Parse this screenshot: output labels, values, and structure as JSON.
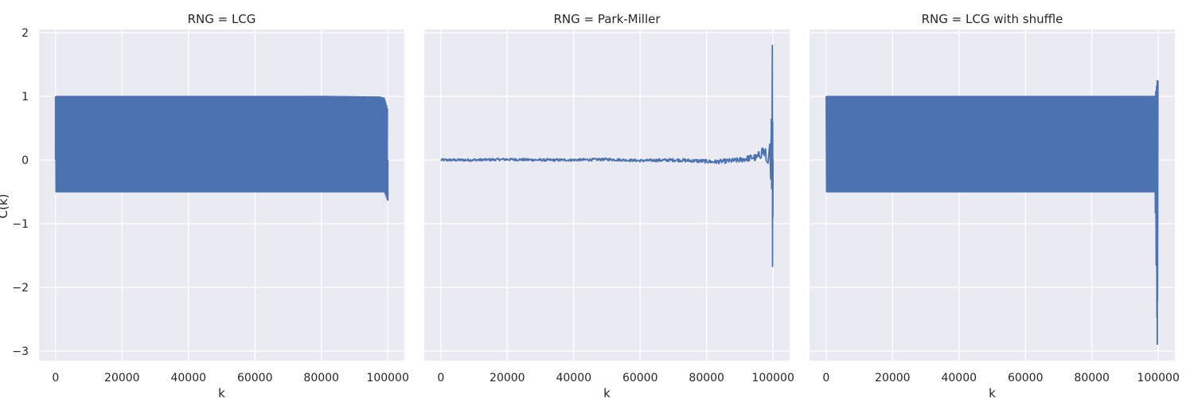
{
  "chart_data": [
    {
      "type": "line",
      "title": "RNG = LCG",
      "xlabel": "k",
      "ylabel": "C(k)",
      "xlim": [
        -5000,
        105000
      ],
      "ylim": [
        -3.15,
        2.05
      ],
      "x_ticks": [
        0,
        20000,
        40000,
        60000,
        80000,
        100000
      ],
      "x_tick_labels": [
        "0",
        "20000",
        "40000",
        "60000",
        "80000",
        "100000"
      ],
      "y_ticks": [
        -3,
        -2,
        -1,
        0,
        1,
        2
      ],
      "y_tick_labels": [
        "−3",
        "−2",
        "−1",
        "0",
        "1",
        "2"
      ],
      "grid": true,
      "line_color": "#4c72b0",
      "background_color": "#eaeaf2",
      "series": [
        {
          "pattern": "oscillating band",
          "band_upper": [
            [
              0,
              1.0
            ],
            [
              20000,
              1.0
            ],
            [
              40000,
              1.0
            ],
            [
              60000,
              1.0
            ],
            [
              80000,
              1.0
            ],
            [
              97500,
              0.99
            ],
            [
              99000,
              0.97
            ],
            [
              100000,
              0.8
            ]
          ],
          "band_lower": [
            [
              0,
              -0.5
            ],
            [
              20000,
              -0.5
            ],
            [
              40000,
              -0.5
            ],
            [
              60000,
              -0.5
            ],
            [
              80000,
              -0.5
            ],
            [
              99000,
              -0.5
            ],
            [
              100000,
              -0.64
            ]
          ],
          "start_value": [
            0,
            0.2
          ]
        }
      ]
    },
    {
      "type": "line",
      "title": "RNG = Park-Miller",
      "xlabel": "k",
      "ylabel": "",
      "xlim": [
        -5000,
        105000
      ],
      "ylim": [
        -3.15,
        2.05
      ],
      "x_ticks": [
        0,
        20000,
        40000,
        60000,
        80000,
        100000
      ],
      "x_tick_labels": [
        "0",
        "20000",
        "40000",
        "60000",
        "80000",
        "100000"
      ],
      "y_ticks": [
        -3,
        -2,
        -1,
        0,
        1,
        2
      ],
      "grid": true,
      "line_color": "#4c72b0",
      "series": [
        {
          "pattern": "noise around zero",
          "x": [
            0,
            10000,
            20000,
            30000,
            40000,
            50000,
            60000,
            70000,
            75000,
            80000,
            82000,
            85000,
            88000,
            90000,
            92000,
            94000,
            95000,
            96000,
            97000,
            98000,
            98500,
            99000,
            99300,
            99500,
            99600,
            99700,
            99800,
            99850,
            99900,
            99950,
            100000
          ],
          "y": [
            0.0,
            0.0,
            0.01,
            0.0,
            0.0,
            0.01,
            -0.01,
            0.0,
            -0.01,
            -0.02,
            -0.03,
            -0.02,
            -0.01,
            0.0,
            0.02,
            0.04,
            0.03,
            0.08,
            0.15,
            0.05,
            -0.05,
            0.25,
            -0.3,
            0.64,
            -0.45,
            0.5,
            1.8,
            -1.67,
            0.6,
            -0.9,
            0.0
          ],
          "noise_envelope": [
            [
              0,
              0.02
            ],
            [
              60000,
              0.02
            ],
            [
              80000,
              0.03
            ],
            [
              90000,
              0.04
            ],
            [
              95000,
              0.06
            ],
            [
              98000,
              0.12
            ]
          ]
        }
      ]
    },
    {
      "type": "line",
      "title": "RNG = LCG with shuffle",
      "xlabel": "k",
      "ylabel": "",
      "xlim": [
        -5000,
        105000
      ],
      "ylim": [
        -3.15,
        2.05
      ],
      "x_ticks": [
        0,
        20000,
        40000,
        60000,
        80000,
        100000
      ],
      "x_tick_labels": [
        "0",
        "20000",
        "40000",
        "60000",
        "80000",
        "100000"
      ],
      "y_ticks": [
        -3,
        -2,
        -1,
        0,
        1,
        2
      ],
      "grid": true,
      "line_color": "#4c72b0",
      "series": [
        {
          "pattern": "oscillating band",
          "band_upper": [
            [
              0,
              1.0
            ],
            [
              20000,
              1.0
            ],
            [
              40000,
              1.0
            ],
            [
              60000,
              1.0
            ],
            [
              80000,
              1.0
            ],
            [
              99000,
              1.0
            ],
            [
              99700,
              1.25
            ],
            [
              100000,
              1.25
            ]
          ],
          "band_lower": [
            [
              0,
              -0.5
            ],
            [
              20000,
              -0.5
            ],
            [
              40000,
              -0.5
            ],
            [
              60000,
              -0.5
            ],
            [
              80000,
              -0.5
            ],
            [
              99000,
              -0.5
            ],
            [
              99700,
              -2.9
            ],
            [
              100000,
              -1.1
            ]
          ]
        }
      ]
    }
  ]
}
